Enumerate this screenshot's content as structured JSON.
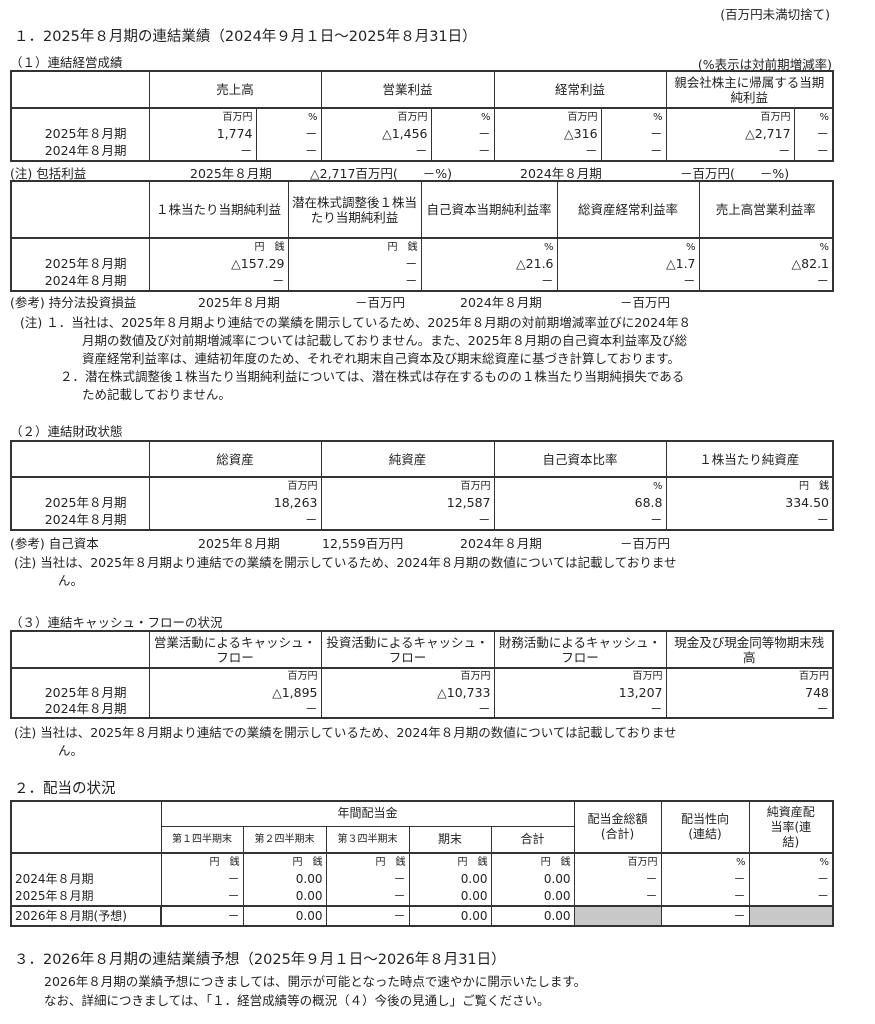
{
  "unit_note": "(百万円未満切捨て)",
  "s1": {
    "title": "１．2025年８月期の連結業績（2024年９月１日～2025年８月31日）",
    "sub1": "（１）連結経営成績",
    "sub1_note": "(%表示は対前期増減率)",
    "t1": {
      "headers": [
        "売上高",
        "営業利益",
        "経常利益",
        "親会社株主に帰属する当期純利益"
      ],
      "unit_m": "百万円",
      "unit_p": "%",
      "rows": [
        {
          "label": "2025年８月期",
          "v": [
            "1,774",
            "－",
            "△1,456",
            "－",
            "△316",
            "－",
            "△2,717",
            "－"
          ]
        },
        {
          "label": "2024年８月期",
          "v": [
            "－",
            "－",
            "－",
            "－",
            "－",
            "－",
            "－",
            "－"
          ]
        }
      ]
    },
    "comprehensive": {
      "label": "(注) 包括利益",
      "p1": "2025年８月期",
      "v1": "△2,717百万円(　　－%)",
      "p2": "2024年８月期",
      "v2": "－百万円(　　－%)"
    },
    "t2": {
      "headers": [
        "１株当たり当期純利益",
        "潜在株式調整後１株当たり当期純利益",
        "自己資本当期純利益率",
        "総資産経常利益率",
        "売上高営業利益率"
      ],
      "units": [
        "円　銭",
        "円　銭",
        "%",
        "%",
        "%"
      ],
      "rows": [
        {
          "label": "2025年８月期",
          "v": [
            "△157.29",
            "－",
            "△21.6",
            "△1.7",
            "△82.1"
          ]
        },
        {
          "label": "2024年８月期",
          "v": [
            "－",
            "－",
            "－",
            "－",
            "－"
          ]
        }
      ]
    },
    "equity_method": {
      "label": "(参考) 持分法投資損益",
      "p1": "2025年８月期",
      "v1": "－百万円",
      "p2": "2024年８月期",
      "v2": "－百万円"
    },
    "notes": [
      "(注) １．当社は、2025年８月期より連結での業績を開示しているため、2025年８月期の対前期増減率並びに2024年８",
      "月期の数値及び対前期増減率については記載しておりません。また、2025年８月期の自己資本利益率及び総",
      "資産経常利益率は、連結初年度のため、それぞれ期末自己資本及び期末総資産に基づき計算しております。",
      "２．潜在株式調整後１株当たり当期純利益については、潜在株式は存在するものの１株当たり当期純損失である",
      "ため記載しておりません。"
    ],
    "sub2": "（２）連結財政状態",
    "t3": {
      "headers": [
        "総資産",
        "純資産",
        "自己資本比率",
        "１株当たり純資産"
      ],
      "units": [
        "百万円",
        "百万円",
        "%",
        "円　銭"
      ],
      "rows": [
        {
          "label": "2025年８月期",
          "v": [
            "18,263",
            "12,587",
            "68.8",
            "334.50"
          ]
        },
        {
          "label": "2024年８月期",
          "v": [
            "－",
            "－",
            "－",
            "－"
          ]
        }
      ]
    },
    "equity": {
      "label": "(参考) 自己資本",
      "p1": "2025年８月期",
      "v1": "12,559百万円",
      "p2": "2024年８月期",
      "v2": "－百万円"
    },
    "note2": [
      "(注) 当社は、2025年８月期より連結での業績を開示しているため、2024年８月期の数値については記載しておりませ",
      "ん。"
    ],
    "sub3": "（３）連結キャッシュ・フローの状況",
    "t4": {
      "headers": [
        "営業活動によるキャッシュ・フロー",
        "投資活動によるキャッシュ・フロー",
        "財務活動によるキャッシュ・フロー",
        "現金及び現金同等物期末残高"
      ],
      "units": [
        "百万円",
        "百万円",
        "百万円",
        "百万円"
      ],
      "rows": [
        {
          "label": "2025年８月期",
          "v": [
            "△1,895",
            "△10,733",
            "13,207",
            "748"
          ]
        },
        {
          "label": "2024年８月期",
          "v": [
            "－",
            "－",
            "－",
            "－"
          ]
        }
      ]
    },
    "note3": [
      "(注) 当社は、2025年８月期より連結での業績を開示しているため、2024年８月期の数値については記載しておりませ",
      "ん。"
    ]
  },
  "s2": {
    "title": "２．配当の状況",
    "group": "年間配当金",
    "sub_headers": [
      "第１四半期末",
      "第２四半期末",
      "第３四半期末",
      "期末",
      "合計"
    ],
    "headers": [
      "配当金総額(合計)",
      "配当性向(連結)",
      "純資産配当率(連結)"
    ],
    "units": [
      "円　銭",
      "円　銭",
      "円　銭",
      "円　銭",
      "円　銭",
      "百万円",
      "%",
      "%"
    ],
    "rows": [
      {
        "label": "2024年８月期",
        "v": [
          "－",
          "0.00",
          "－",
          "0.00",
          "0.00",
          "－",
          "－",
          "－"
        ]
      },
      {
        "label": "2025年８月期",
        "v": [
          "－",
          "0.00",
          "－",
          "0.00",
          "0.00",
          "－",
          "－",
          "－"
        ]
      }
    ],
    "forecast": {
      "label": "2026年８月期(予想)",
      "v": [
        "－",
        "0.00",
        "－",
        "0.00",
        "0.00",
        "",
        "－",
        ""
      ]
    }
  },
  "s3": {
    "title": "３．2026年８月期の連結業績予想（2025年９月１日～2026年８月31日）",
    "lines": [
      "2026年８月期の業績予想につきましては、開示が可能となった時点で速やかに開示いたします。",
      "なお、詳細につきましては、「１．経営成績等の概況（４）今後の見通し」ご覧ください。"
    ]
  }
}
